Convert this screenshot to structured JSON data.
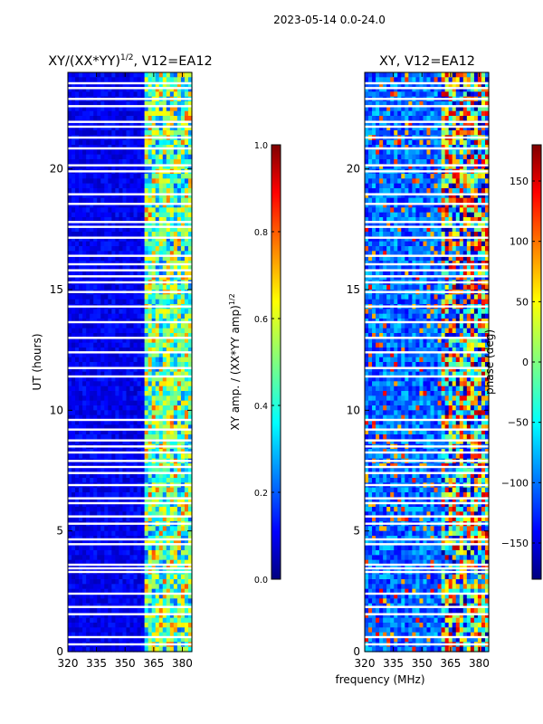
{
  "figure": {
    "suptitle": "2023-05-14 0.0-24.0",
    "xlabel": "frequency (MHz)"
  },
  "chart_data": [
    {
      "type": "heatmap",
      "title_main": "XY/(XX*YY)",
      "title_sup": "1/2",
      "title_tail": ", V12=EA12",
      "xlabel": "",
      "ylabel": "UT (hours)",
      "xlim": [
        320,
        385
      ],
      "ylim": [
        0,
        24
      ],
      "xticks": [
        320,
        335,
        350,
        365,
        380
      ],
      "yticks": [
        0,
        5,
        10,
        15,
        20
      ],
      "colormap": "jet",
      "colorbar": {
        "label_main": "XY amp. / (XX*YY amp)",
        "label_sup": "1/2",
        "range": [
          0.0,
          1.0
        ],
        "ticks": [
          "0.0",
          "0.2",
          "0.4",
          "0.6",
          "0.8",
          "1.0"
        ]
      }
    },
    {
      "type": "heatmap",
      "title_main": "XY, V12=EA12",
      "xlabel": "frequency (MHz)",
      "ylabel": "",
      "xlim": [
        320,
        385
      ],
      "ylim": [
        0,
        24
      ],
      "xticks": [
        320,
        335,
        350,
        365,
        380
      ],
      "yticks": [
        0,
        5,
        10,
        15,
        20
      ],
      "colormap": "jet",
      "colorbar": {
        "label_main": "phase (deg)",
        "range": [
          -180,
          180
        ],
        "ticks": [
          "−150",
          "−100",
          "−50",
          "0",
          "50",
          "100",
          "150"
        ]
      }
    }
  ],
  "colors": {
    "jet_dark_blue": "#00007f",
    "jet_blue": "#0000ff",
    "jet_cyan": "#00ffff",
    "jet_yellow": "#ffff00",
    "jet_red": "#ff0000",
    "jet_dark_red": "#7f0000",
    "flag_gap": "#ffffff"
  },
  "flagged_hours": [
    0.3,
    0.6,
    1.55,
    1.85,
    2.4,
    3.3,
    3.45,
    3.6,
    4.45,
    4.65,
    5.3,
    5.6,
    6.15,
    6.35,
    6.9,
    7.4,
    7.65,
    7.9,
    8.25,
    8.5,
    8.75,
    9.2,
    9.6,
    11.4,
    11.75,
    12.4,
    13.0,
    13.65,
    14.3,
    14.9,
    15.3,
    15.55,
    15.8,
    16.05,
    16.4,
    17.15,
    17.6,
    17.8,
    18.55,
    18.95,
    19.9,
    20.15,
    20.85,
    21.3,
    21.75,
    21.95,
    22.6,
    22.9,
    23.35,
    23.55
  ]
}
